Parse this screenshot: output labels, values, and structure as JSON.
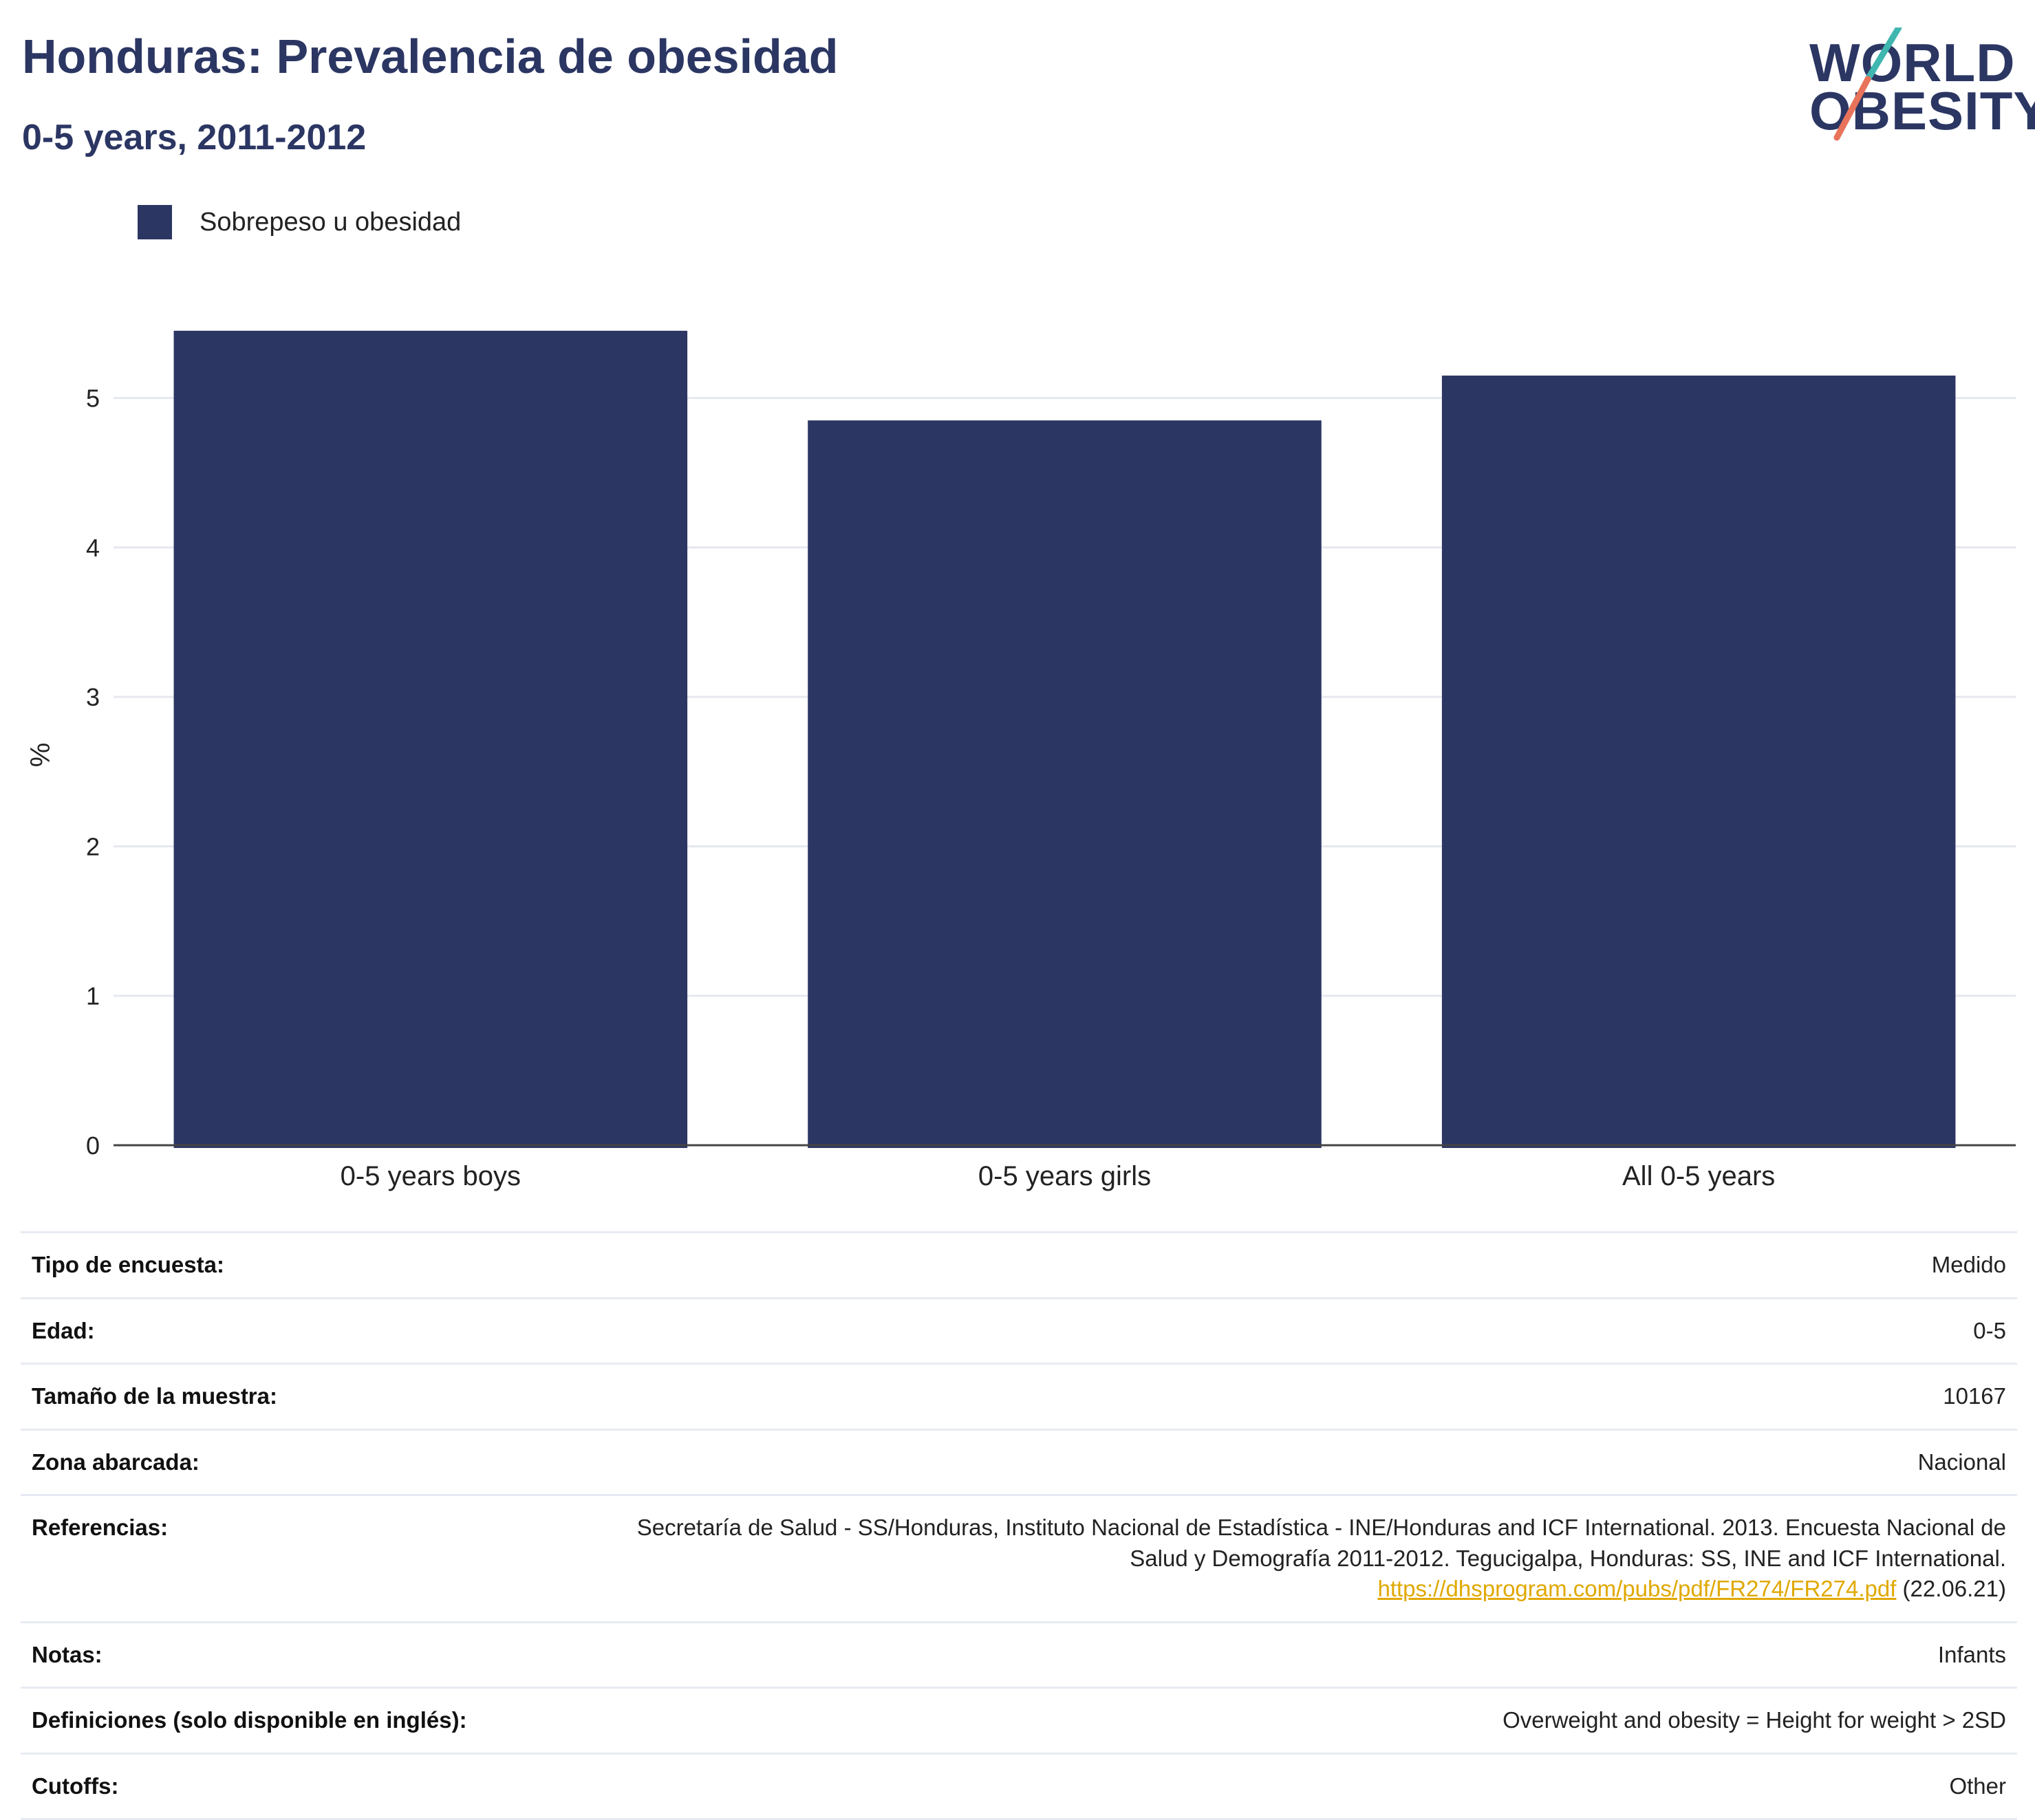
{
  "header": {
    "title": "Honduras: Prevalencia de obesidad",
    "subtitle": "0-5 years, 2011-2012"
  },
  "logo": {
    "line1": "WORLD",
    "line2": "OBESITY",
    "colors": {
      "text": "#2b3663",
      "slash_top": "#3fb6b0",
      "slash_bottom": "#e8735a"
    }
  },
  "legend": {
    "label": "Sobrepeso u obesidad",
    "color": "#2b3663"
  },
  "chart_data": {
    "type": "bar",
    "categories": [
      "0-5 years boys",
      "0-5 years girls",
      "All 0-5 years"
    ],
    "series": [
      {
        "name": "Sobrepeso u obesidad",
        "values": [
          5.45,
          4.85,
          5.15
        ],
        "color": "#2b3663"
      }
    ],
    "ylabel": "%",
    "ylim": [
      0,
      5.5
    ],
    "yticks": [
      0,
      1,
      2,
      3,
      4,
      5
    ],
    "grid": true,
    "legend_position": "top-left"
  },
  "info": {
    "rows": [
      {
        "key": "Tipo de encuesta:",
        "value": "Medido"
      },
      {
        "key": "Edad:",
        "value": "0-5"
      },
      {
        "key": "Tamaño de la muestra:",
        "value": "10167"
      },
      {
        "key": "Zona abarcada:",
        "value": "Nacional"
      },
      {
        "key": "Referencias:",
        "value": "Secretaría de Salud - SS/Honduras, Instituto Nacional de Estadística - INE/Honduras and ICF International. 2013. Encuesta Nacional de Salud y Demografía 2011-2012. Tegucigalpa, Honduras: SS, INE and ICF International.",
        "link": "https://dhsprogram.com/pubs/pdf/FR274/FR274.pdf",
        "suffix": " (22.06.21)"
      },
      {
        "key": "Notas:",
        "value": "Infants"
      },
      {
        "key": "Definiciones (solo disponible en inglés):",
        "value": "Overweight and obesity = Height for weight > 2SD"
      },
      {
        "key": "Cutoffs:",
        "value": "Other"
      }
    ]
  }
}
